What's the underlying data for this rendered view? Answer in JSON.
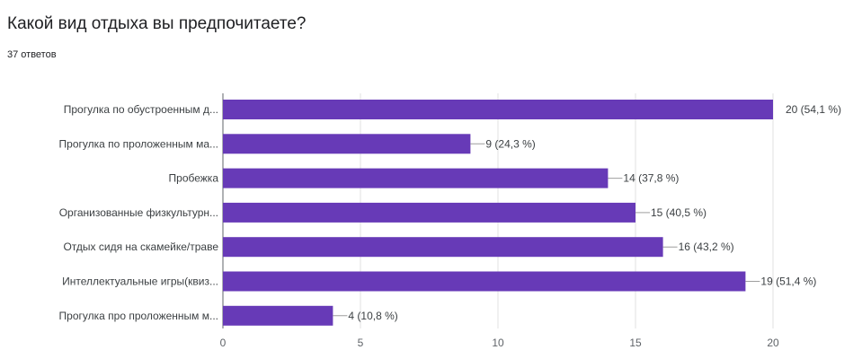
{
  "header": {
    "question": "Какой вид отдыха вы предпочитаете?",
    "responses": "37 ответов"
  },
  "chart_data": {
    "type": "bar",
    "orientation": "horizontal",
    "categories": [
      "Прогулка по обустроенным д...",
      "Прогулка по проложенным ма...",
      "Пробежка",
      "Организованные физкультурн...",
      "Отдых сидя на скамейке/траве",
      "Интеллектуальные игры(квиз...",
      "Прогулка про проложенным м..."
    ],
    "values": [
      20,
      9,
      14,
      15,
      16,
      19,
      4
    ],
    "value_labels": [
      "20 (54,1 %)",
      "9 (24,3 %)",
      "14 (37,8 %)",
      "15 (40,5 %)",
      "16 (43,2 %)",
      "19 (51,4 %)",
      "4 (10,8 %)"
    ],
    "x_ticks": [
      "0",
      "5",
      "10",
      "15",
      "20"
    ],
    "xlim": [
      0,
      20
    ],
    "grid": true,
    "bar_color": "#673ab7"
  }
}
